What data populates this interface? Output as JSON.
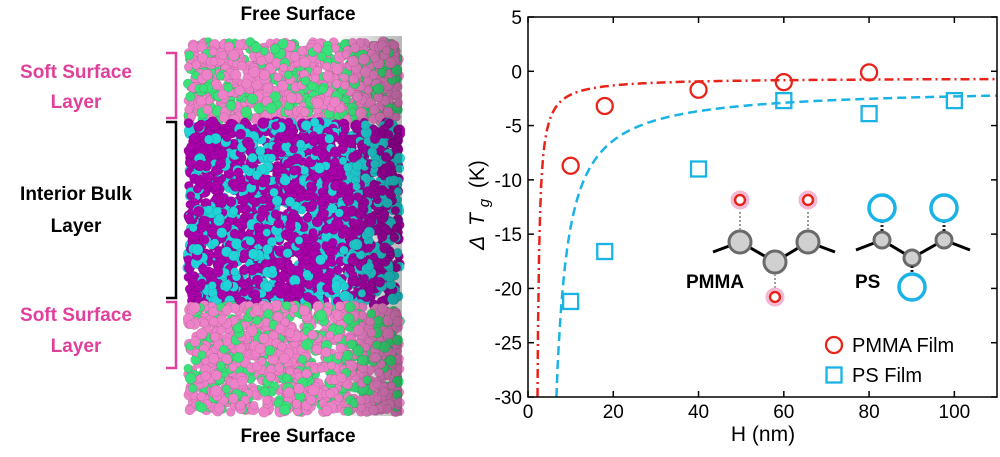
{
  "left_panel": {
    "top_label": "Free Surface",
    "bottom_label": "Free Surface",
    "layers": [
      {
        "line1": "Soft Surface",
        "line2": "Layer",
        "color": "#e0409c"
      },
      {
        "line1": "Interior Bulk",
        "line2": "Layer",
        "color": "#000000"
      },
      {
        "line1": "Soft Surface",
        "line2": "Layer",
        "color": "#e0409c"
      }
    ],
    "atom_colors": {
      "surface_primary": "#ee82c8",
      "surface_secondary": "#3ae07a",
      "bulk_primary": "#a800a8",
      "bulk_secondary": "#22d4d8"
    }
  },
  "chart_data": {
    "type": "scatter",
    "xlabel": "H (nm)",
    "ylabel": "Δ T g (K)",
    "ylabel_parts": {
      "delta": "Δ",
      "symbol": "T",
      "subscript": "g",
      "unit": "(K)"
    },
    "xlim": [
      0,
      110
    ],
    "ylim": [
      -30,
      5
    ],
    "xticks": [
      0,
      20,
      40,
      60,
      80,
      100
    ],
    "yticks": [
      5,
      0,
      -5,
      -10,
      -15,
      -20,
      -25,
      -30
    ],
    "grid": false,
    "legend_position": "bottom-right",
    "series": [
      {
        "name": "PMMA Film",
        "marker": "circle",
        "color": "#e8231a",
        "x": [
          10,
          18,
          40,
          60,
          80
        ],
        "y": [
          -8.7,
          -3.2,
          -1.7,
          -1.0,
          -0.1
        ],
        "fit": {
          "style": "dash-dot",
          "a": 12.78,
          "b": 1.8,
          "c": -0.6
        }
      },
      {
        "name": "PS Film",
        "marker": "square",
        "color": "#1ab3e6",
        "x": [
          10,
          18,
          40,
          60,
          80,
          100
        ],
        "y": [
          -21.2,
          -16.6,
          -9.0,
          -2.7,
          -3.9,
          -2.7
        ],
        "fit": {
          "style": "dashed",
          "a": 78.5,
          "b": 3.9,
          "c": -1.5
        }
      }
    ],
    "inset_labels": [
      "PMMA",
      "PS"
    ]
  }
}
